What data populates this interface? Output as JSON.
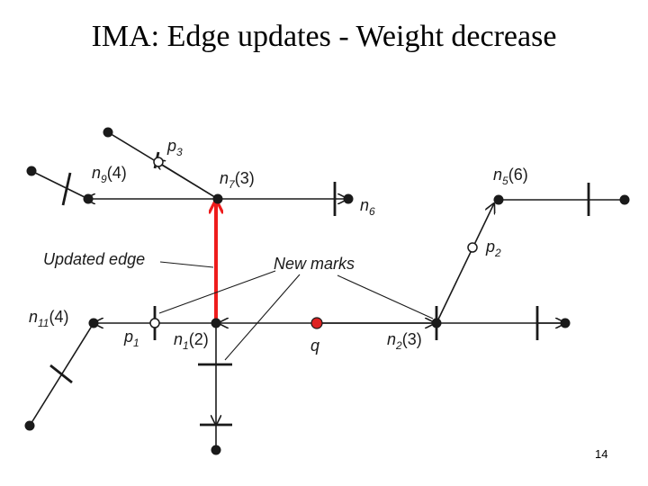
{
  "slide": {
    "title": "IMA: Edge updates - Weight decrease",
    "page_number": "14"
  },
  "diagram": {
    "labels": {
      "p3": {
        "base": "p",
        "sub": "3",
        "suffix": ""
      },
      "n9": {
        "base": "n",
        "sub": "9",
        "suffix": "(4)"
      },
      "n7": {
        "base": "n",
        "sub": "7",
        "suffix": "(3)"
      },
      "n6": {
        "base": "n",
        "sub": "6",
        "suffix": ""
      },
      "n5": {
        "base": "n",
        "sub": "5",
        "suffix": "(6)"
      },
      "p2": {
        "base": "p",
        "sub": "2",
        "suffix": ""
      },
      "n11": {
        "base": "n",
        "sub": "11",
        "suffix": "(4)"
      },
      "p1": {
        "base": "p",
        "sub": "1",
        "suffix": ""
      },
      "n1": {
        "base": "n",
        "sub": "1",
        "suffix": "(2)"
      },
      "q": {
        "base": "q",
        "sub": "",
        "suffix": ""
      },
      "n2": {
        "base": "n",
        "sub": "2",
        "suffix": "(3)"
      }
    },
    "annotations": {
      "updated_edge": "Updated edge",
      "new_marks": "New marks"
    },
    "colors": {
      "edge": "#1a1a1a",
      "updated_edge": "#ee1c1c",
      "query_point": "#dd2222"
    }
  }
}
